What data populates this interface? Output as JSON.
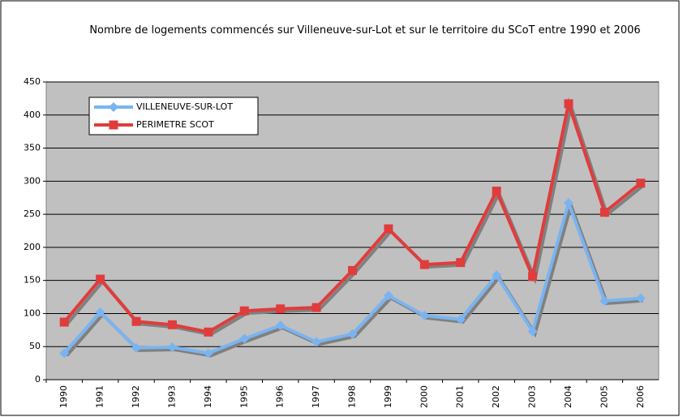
{
  "chart_data": {
    "type": "line",
    "title": "Nombre de logements commencés sur Villeneuve-sur-Lot et sur le territoire du SCoT entre 1990 et 2006",
    "categories": [
      "1990",
      "1991",
      "1992",
      "1993",
      "1994",
      "1995",
      "1996",
      "1997",
      "1998",
      "1999",
      "2000",
      "2001",
      "2002",
      "2003",
      "2004",
      "2005",
      "2006"
    ],
    "series": [
      {
        "name": "VILLENEUVE-SUR-LOT",
        "color": "#7ab4f0",
        "marker": "diamond",
        "values": [
          40,
          102,
          48,
          49,
          40,
          62,
          82,
          57,
          69,
          127,
          97,
          91,
          158,
          73,
          267,
          119,
          123
        ]
      },
      {
        "name": "PERIMETRE SCOT",
        "color": "#e03c3c",
        "marker": "square",
        "values": [
          87,
          152,
          88,
          83,
          72,
          104,
          107,
          109,
          165,
          228,
          174,
          177,
          285,
          156,
          417,
          253,
          297
        ]
      }
    ],
    "ylim": [
      0,
      450
    ],
    "yticks": [
      0,
      50,
      100,
      150,
      200,
      250,
      300,
      350,
      400,
      450
    ],
    "grid": true,
    "legend": "top-left"
  }
}
